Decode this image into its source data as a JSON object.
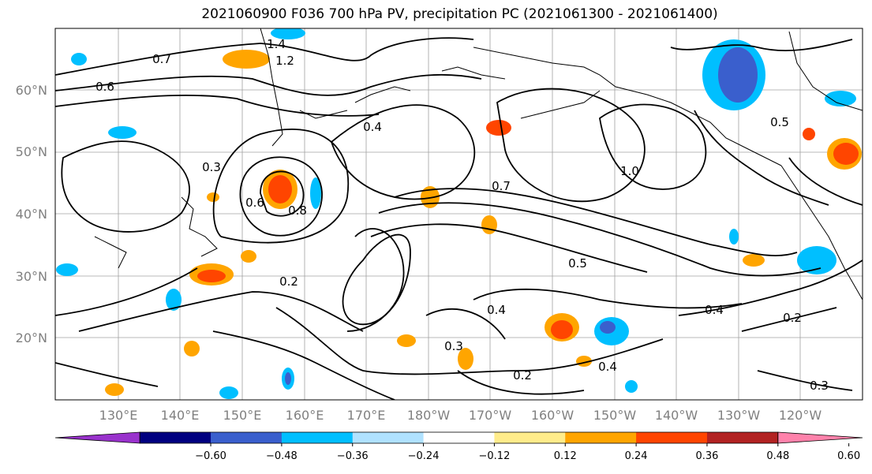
{
  "title": "2021060900 F036 700 hPa PV, precipitation PC (2021061300 - 2021061400)",
  "lat_labels": [
    "60°N",
    "50°N",
    "40°N",
    "30°N",
    "20°N"
  ],
  "lon_labels": [
    "130°E",
    "140°E",
    "150°E",
    "160°E",
    "170°E",
    "180°W",
    "170°W",
    "160°W",
    "150°W",
    "140°W",
    "130°W",
    "120°W"
  ],
  "colorbar": {
    "colors": [
      "#9932cc",
      "#000080",
      "#3a5fcd",
      "#00bfff",
      "#b0e2ff",
      "#ffffff",
      "#ffec8b",
      "#ffa500",
      "#ff4500",
      "#b22222",
      "#ff82ab"
    ],
    "ticks": [
      "−0.60",
      "−0.48",
      "−0.36",
      "−0.24",
      "−0.12",
      "0.12",
      "0.24",
      "0.36",
      "0.48",
      "0.60"
    ]
  },
  "contour_labels": [
    "0.7",
    "0.6",
    "0.4",
    "0.3",
    "0.2",
    "0.5",
    "1.2",
    "1.4",
    "0.8",
    "1.0",
    "0.3",
    "0.4",
    "0.2",
    "0.6",
    "0.5",
    "0.7",
    "0.4",
    "0.3",
    "0.2",
    "0.4"
  ]
}
